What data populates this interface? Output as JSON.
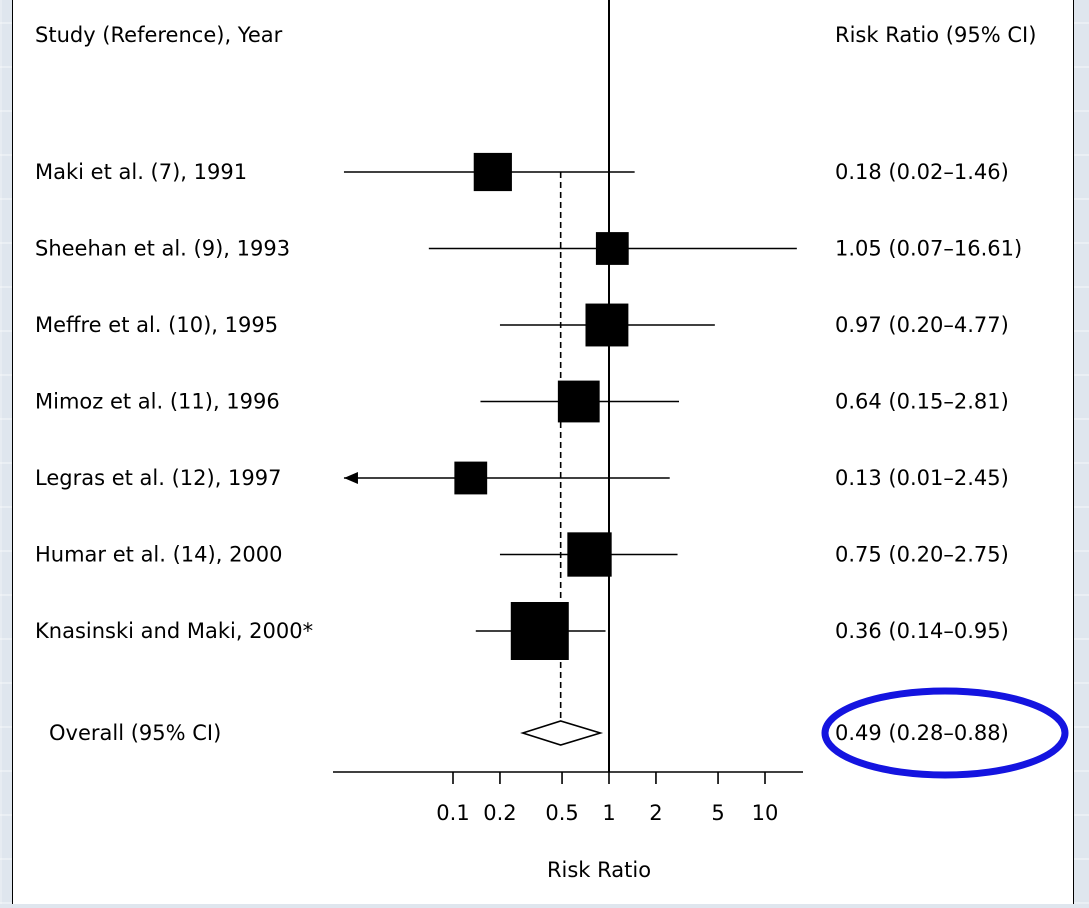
{
  "chart_data": {
    "type": "forest",
    "header_left": "Study (Reference), Year",
    "header_right": "Risk Ratio (95% CI)",
    "xlabel": "Risk Ratio",
    "x_scale": "log",
    "xlim": [
      0.02,
      16
    ],
    "ticks": [
      0.1,
      0.2,
      0.5,
      1,
      2,
      5,
      10
    ],
    "tick_labels": [
      "0.1",
      "0.2",
      "0.5",
      "1",
      "2",
      "5",
      "10"
    ],
    "reference_line": 1,
    "overall_line": 0.49,
    "studies": [
      {
        "label": "Maki et al. (7), 1991",
        "rr": 0.18,
        "lo": 0.02,
        "hi": 1.46,
        "text": "0.18 (0.02–1.46)",
        "weight": 0.45,
        "arrow_left": false
      },
      {
        "label": "Sheehan et al. (9), 1993",
        "rr": 1.05,
        "lo": 0.07,
        "hi": 16.61,
        "text": "1.05 (0.07–16.61)",
        "weight": 0.3,
        "arrow_left": false
      },
      {
        "label": "Meffre et al. (10), 1995",
        "rr": 0.97,
        "lo": 0.2,
        "hi": 4.77,
        "text": "0.97 (0.20–4.77)",
        "weight": 0.58,
        "arrow_left": false
      },
      {
        "label": "Mimoz et al. (11), 1996",
        "rr": 0.64,
        "lo": 0.15,
        "hi": 2.81,
        "text": "0.64 (0.15–2.81)",
        "weight": 0.55,
        "arrow_left": false
      },
      {
        "label": "Legras et al. (12), 1997",
        "rr": 0.13,
        "lo": 0.01,
        "hi": 2.45,
        "text": "0.13 (0.01–2.45)",
        "weight": 0.3,
        "arrow_left": true
      },
      {
        "label": "Humar et al. (14), 2000",
        "rr": 0.75,
        "lo": 0.2,
        "hi": 2.75,
        "text": "0.75 (0.20–2.75)",
        "weight": 0.62,
        "arrow_left": false
      },
      {
        "label": "Knasinski and Maki, 2000*",
        "rr": 0.36,
        "lo": 0.14,
        "hi": 0.95,
        "text": "0.36 (0.14–0.95)",
        "weight": 1.0,
        "arrow_left": false
      }
    ],
    "overall": {
      "label": "Overall (95% CI)",
      "rr": 0.49,
      "lo": 0.28,
      "hi": 0.88,
      "text": "0.49 (0.28–0.88)"
    },
    "highlight_color": "#1414e0"
  }
}
